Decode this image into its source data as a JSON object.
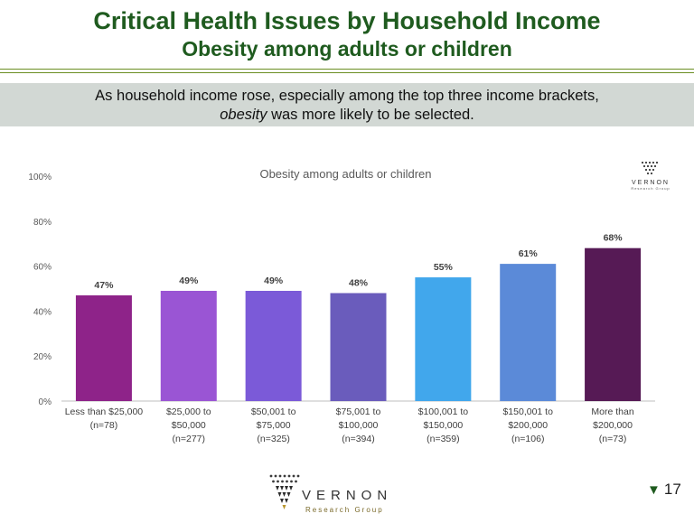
{
  "slide": {
    "title": "Critical Health Issues by Household Income",
    "subtitle": "Obesity among adults or children",
    "callout_line1": "As household income rose, especially among the top three income brackets,",
    "callout_em": "obesity",
    "callout_line2_rest": " was more likely to be selected.",
    "page_number": "17",
    "logo_name": "VERNON",
    "logo_sub": "Research Group"
  },
  "colors": {
    "title": "#1f5b1f",
    "callout_bg": "#d2d8d4",
    "bars": [
      "#8e2389",
      "#9a55d4",
      "#7b5ad8",
      "#6a5cbc",
      "#41a7ec",
      "#5b8ad8",
      "#561a55"
    ]
  },
  "chart_data": {
    "type": "bar",
    "title": "Obesity among adults or children",
    "categories": [
      [
        "Less than $25,000",
        "(n=78)"
      ],
      [
        "$25,000 to",
        "$50,000",
        "(n=277)"
      ],
      [
        "$50,001 to",
        "$75,000",
        "(n=325)"
      ],
      [
        "$75,001 to",
        "$100,000",
        "(n=394)"
      ],
      [
        "$100,001 to",
        "$150,000",
        "(n=359)"
      ],
      [
        "$150,001 to",
        "$200,000",
        "(n=106)"
      ],
      [
        "More than",
        "$200,000",
        "(n=73)"
      ]
    ],
    "values": [
      47,
      49,
      49,
      48,
      55,
      61,
      68
    ],
    "value_labels": [
      "47%",
      "49%",
      "49%",
      "48%",
      "55%",
      "61%",
      "68%"
    ],
    "ylim": [
      0,
      100
    ],
    "yticks": [
      0,
      20,
      40,
      60,
      80,
      100
    ],
    "ytick_labels": [
      "0%",
      "20%",
      "40%",
      "60%",
      "80%",
      "100%"
    ],
    "grid": false,
    "legend": "none"
  }
}
